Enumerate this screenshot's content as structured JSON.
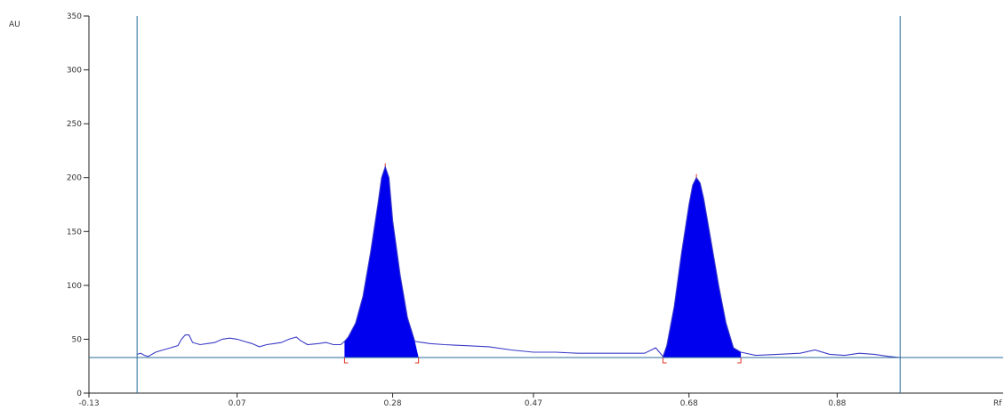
{
  "chart_data": {
    "type": "line",
    "title": "",
    "ylabel": "AU",
    "xlabel": "Rf",
    "xlim": [
      -0.13,
      1.08
    ],
    "ylim": [
      0,
      350
    ],
    "x_ticks": [
      -0.13,
      0.07,
      0.28,
      0.47,
      0.68,
      0.88
    ],
    "x_tick_labels": [
      "-0.13",
      "0.07",
      "0.28",
      "0.47",
      "0.68",
      "0.88"
    ],
    "y_ticks": [
      0,
      50,
      100,
      150,
      200,
      250,
      300,
      350
    ],
    "y_tick_labels": [
      "0",
      "50",
      "100",
      "150",
      "200",
      "250",
      "300",
      "350"
    ],
    "front_markers": [
      -0.065,
      0.965
    ],
    "baseline": 33,
    "grid": false,
    "colors": {
      "trace": "#3b3bc8",
      "peak_fill": "#0000ee",
      "marker": "#2a6b9a",
      "baseline": "#2a6b9a",
      "peak_bracket": "#e03020"
    },
    "series": [
      {
        "values": [
          [
            -0.065,
            36
          ],
          [
            -0.06,
            37
          ],
          [
            -0.055,
            35
          ],
          [
            -0.05,
            34
          ],
          [
            -0.04,
            38
          ],
          [
            -0.03,
            40
          ],
          [
            -0.02,
            42
          ],
          [
            -0.01,
            44
          ],
          [
            -0.005,
            50
          ],
          [
            0.0,
            54
          ],
          [
            0.005,
            54
          ],
          [
            0.01,
            47
          ],
          [
            0.02,
            45
          ],
          [
            0.03,
            46
          ],
          [
            0.04,
            47
          ],
          [
            0.05,
            50
          ],
          [
            0.06,
            51
          ],
          [
            0.07,
            50
          ],
          [
            0.08,
            48
          ],
          [
            0.09,
            46
          ],
          [
            0.1,
            43
          ],
          [
            0.11,
            45
          ],
          [
            0.12,
            46
          ],
          [
            0.13,
            47
          ],
          [
            0.14,
            50
          ],
          [
            0.15,
            52
          ],
          [
            0.155,
            49
          ],
          [
            0.165,
            45
          ],
          [
            0.18,
            46
          ],
          [
            0.19,
            47
          ],
          [
            0.2,
            45
          ],
          [
            0.21,
            45
          ],
          [
            0.215,
            48
          ],
          [
            0.22,
            52
          ],
          [
            0.23,
            65
          ],
          [
            0.24,
            90
          ],
          [
            0.25,
            130
          ],
          [
            0.26,
            175
          ],
          [
            0.265,
            200
          ],
          [
            0.27,
            210
          ],
          [
            0.275,
            200
          ],
          [
            0.28,
            160
          ],
          [
            0.29,
            110
          ],
          [
            0.3,
            70
          ],
          [
            0.31,
            48
          ],
          [
            0.32,
            47
          ],
          [
            0.33,
            46
          ],
          [
            0.35,
            45
          ],
          [
            0.38,
            44
          ],
          [
            0.41,
            43
          ],
          [
            0.44,
            40
          ],
          [
            0.47,
            38
          ],
          [
            0.5,
            38
          ],
          [
            0.53,
            37
          ],
          [
            0.56,
            37
          ],
          [
            0.59,
            37
          ],
          [
            0.62,
            37
          ],
          [
            0.635,
            42
          ],
          [
            0.64,
            38
          ],
          [
            0.645,
            34
          ],
          [
            0.65,
            44
          ],
          [
            0.66,
            80
          ],
          [
            0.67,
            130
          ],
          [
            0.68,
            175
          ],
          [
            0.685,
            193
          ],
          [
            0.69,
            200
          ],
          [
            0.695,
            195
          ],
          [
            0.7,
            180
          ],
          [
            0.71,
            140
          ],
          [
            0.72,
            100
          ],
          [
            0.73,
            65
          ],
          [
            0.74,
            42
          ],
          [
            0.75,
            38
          ],
          [
            0.77,
            35
          ],
          [
            0.8,
            36
          ],
          [
            0.83,
            37
          ],
          [
            0.85,
            40
          ],
          [
            0.87,
            36
          ],
          [
            0.89,
            35
          ],
          [
            0.91,
            37
          ],
          [
            0.93,
            36
          ],
          [
            0.95,
            34
          ],
          [
            0.965,
            33
          ]
        ]
      }
    ],
    "peaks": [
      {
        "start": 0.215,
        "apex": 0.27,
        "end": 0.315,
        "height": 210
      },
      {
        "start": 0.645,
        "apex": 0.69,
        "end": 0.75,
        "height": 200
      }
    ]
  }
}
